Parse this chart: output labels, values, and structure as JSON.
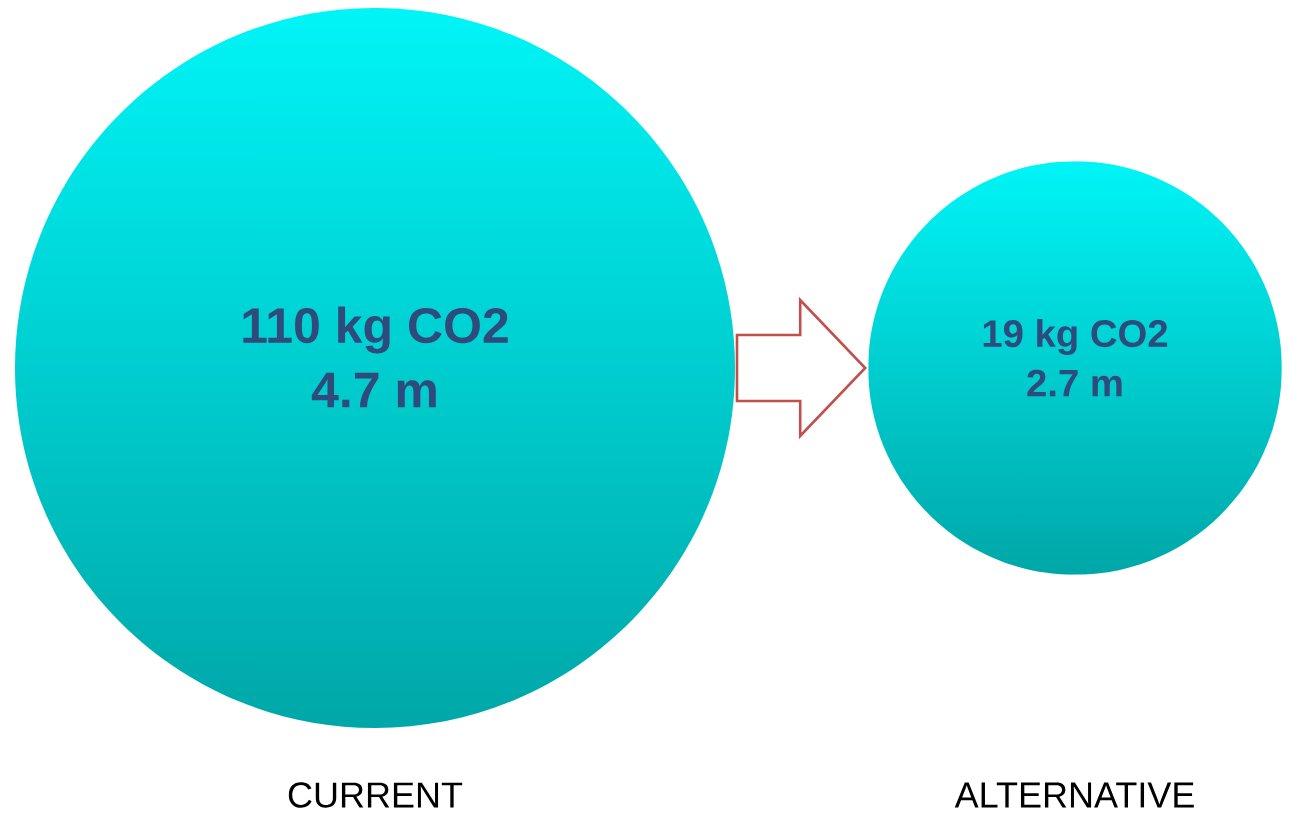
{
  "chart_data": {
    "type": "other",
    "categories": [
      "CURRENT",
      "ALTERNATIVE"
    ],
    "colors": [
      "#00f5f7",
      "#00f5f7"
    ],
    "series": [
      {
        "color": "#2e4b7c",
        "values": [
          110,
          19
        ],
        "value_labels": [
          "110 kg CO2",
          "19 kg CO2"
        ]
      },
      {
        "color": "#2e4b7c",
        "values": [
          4.7,
          2.7
        ],
        "value_labels": [
          "4.7 m",
          "2.7 m"
        ]
      }
    ]
  }
}
